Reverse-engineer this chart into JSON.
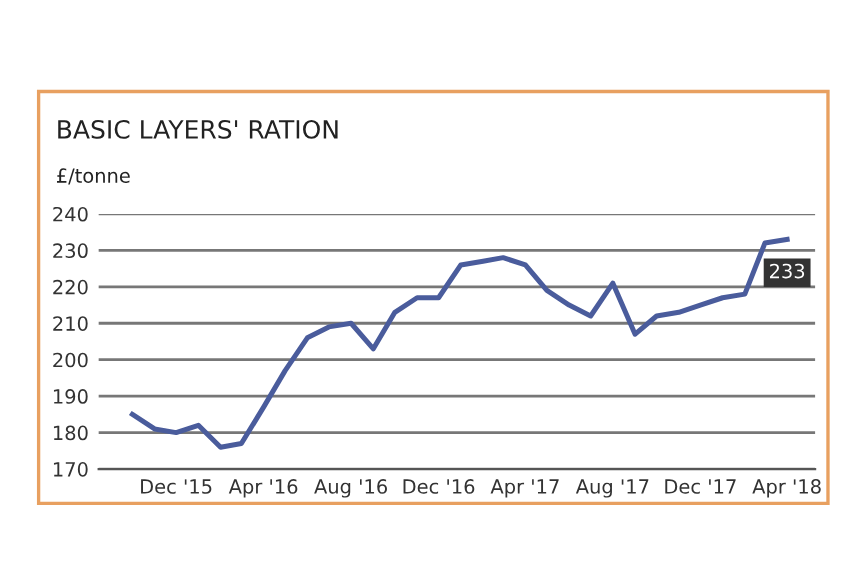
{
  "chart_data": {
    "type": "line",
    "title": "BASIC LAYERS' RATION",
    "ylabel": "£/tonne",
    "x": [
      "2015-10",
      "2015-11",
      "2015-12",
      "2016-01",
      "2016-02",
      "2016-03",
      "2016-04",
      "2016-05",
      "2016-06",
      "2016-07",
      "2016-08",
      "2016-09",
      "2016-10",
      "2016-11",
      "2016-12",
      "2017-01",
      "2017-02",
      "2017-03",
      "2017-04",
      "2017-05",
      "2017-06",
      "2017-07",
      "2017-08",
      "2017-09",
      "2017-10",
      "2017-11",
      "2017-12",
      "2018-01",
      "2018-02",
      "2018-03",
      "2018-04"
    ],
    "series": [
      {
        "color": "#4a5c9c",
        "values": [
          185,
          181,
          180,
          182,
          176,
          177,
          187,
          197,
          206,
          209,
          210,
          203,
          213,
          217,
          217,
          226,
          227,
          228,
          226,
          219,
          215,
          212,
          221,
          207,
          212,
          213,
          215,
          217,
          218,
          232,
          233
        ],
        "value_labels": [
          null,
          null,
          null,
          null,
          null,
          null,
          null,
          null,
          null,
          null,
          null,
          null,
          null,
          null,
          null,
          null,
          null,
          null,
          null,
          null,
          null,
          null,
          null,
          null,
          null,
          null,
          null,
          null,
          null,
          null,
          "233"
        ]
      }
    ],
    "xlim": [
      "2015-08-15",
      "2018-05-10"
    ],
    "xticks": [
      {
        "value": "2015-12",
        "label": "Dec '15"
      },
      {
        "value": "2016-04",
        "label": "Apr '16"
      },
      {
        "value": "2016-08",
        "label": "Aug '16"
      },
      {
        "value": "2016-12",
        "label": "Dec '16"
      },
      {
        "value": "2017-04",
        "label": "Apr '17"
      },
      {
        "value": "2017-08",
        "label": "Aug '17"
      },
      {
        "value": "2017-12",
        "label": "Dec '17"
      },
      {
        "value": "2018-04",
        "label": "Apr '18"
      }
    ],
    "ylim": [
      170,
      240
    ],
    "yticks": [
      170,
      180,
      190,
      200,
      210,
      220,
      230,
      240
    ],
    "grid": "y",
    "marker": "none",
    "line_style": "solid"
  }
}
